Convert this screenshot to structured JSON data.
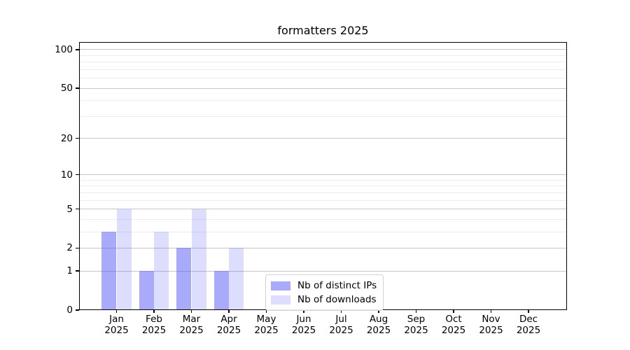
{
  "title": "formatters 2025",
  "chart_data": {
    "type": "bar",
    "title": "formatters 2025",
    "months": [
      "Jan",
      "Feb",
      "Mar",
      "Apr",
      "May",
      "Jun",
      "Jul",
      "Aug",
      "Sep",
      "Oct",
      "Nov",
      "Dec"
    ],
    "year": "2025",
    "categories": [
      "Jan 2025",
      "Feb 2025",
      "Mar 2025",
      "Apr 2025",
      "May 2025",
      "Jun 2025",
      "Jul 2025",
      "Aug 2025",
      "Sep 2025",
      "Oct 2025",
      "Nov 2025",
      "Dec 2025"
    ],
    "series": [
      {
        "name": "Nb of distinct IPs",
        "color": "rgba(85,85,245,0.5)",
        "values": [
          3,
          1,
          2,
          1,
          0,
          0,
          0,
          0,
          0,
          0,
          0,
          0
        ]
      },
      {
        "name": "Nb of downloads",
        "color": "rgba(85,85,245,0.2)",
        "values": [
          5,
          3,
          5,
          2,
          0,
          0,
          0,
          0,
          0,
          0,
          0,
          0
        ]
      }
    ],
    "y_axis": {
      "ticks": [
        0,
        1,
        2,
        5,
        10,
        20,
        50,
        100
      ],
      "minor_gridlines": [
        3,
        4,
        6,
        7,
        8,
        9,
        30,
        40,
        60,
        70,
        80,
        90
      ],
      "scale": "log10(value+1)",
      "range": [
        0,
        100
      ]
    },
    "grid": "horizontal",
    "legend_position": "lower center"
  },
  "colors": {
    "bar_base": "#5555f5",
    "major_grid": "#c6c6c6",
    "minor_grid": "#ececec",
    "axis": "#000000",
    "legend_border": "#d2d2d2",
    "background": "#ffffff"
  }
}
